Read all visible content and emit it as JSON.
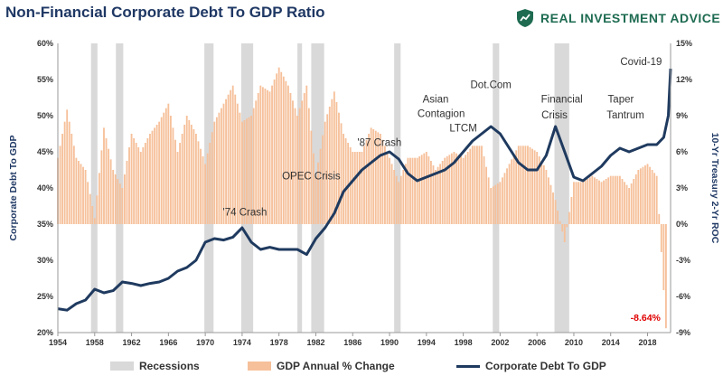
{
  "header": {
    "title": "Non-Financial Corporate Debt To GDP Ratio",
    "brand": "REAL INVESTMENT ADVICE"
  },
  "colors": {
    "debt_line": "#1f3a5f",
    "gdp_bars": "#f6c09a",
    "recession": "#d9d9d9",
    "negative_label": "#e00000",
    "title": "#1f3864",
    "brand": "#1e6b52"
  },
  "legend": {
    "recessions": "Recessions",
    "gdp": "GDP Annual % Change",
    "debt": "Corporate Debt To GDP"
  },
  "chart_data": {
    "type": "combo",
    "title": "Non-Financial Corporate Debt To GDP Ratio",
    "xlabel": "",
    "ylabel_left": "Corporate Debt To GDP",
    "ylabel_right": "10-Yr Treasury 2-Yr ROC",
    "x_range": [
      1954,
      2020.5
    ],
    "y_left_range": [
      20,
      60
    ],
    "y_right_range": [
      -9,
      15
    ],
    "x_ticks": [
      "1954",
      "1958",
      "1962",
      "1966",
      "1970",
      "1974",
      "1978",
      "1982",
      "1986",
      "1990",
      "1994",
      "1998",
      "2002",
      "2006",
      "2010",
      "2014",
      "2018"
    ],
    "y_left_ticks": [
      "20%",
      "25%",
      "30%",
      "35%",
      "40%",
      "45%",
      "50%",
      "55%",
      "60%"
    ],
    "y_right_ticks": [
      "-9%",
      "-6%",
      "-3%",
      "0%",
      "3%",
      "6%",
      "9%",
      "12%",
      "15%"
    ],
    "recessions": [
      [
        1957.6,
        1958.3
      ],
      [
        1960.3,
        1961.1
      ],
      [
        1969.9,
        1970.9
      ],
      [
        1973.9,
        1975.2
      ],
      [
        1980.0,
        1980.5
      ],
      [
        1981.5,
        1982.9
      ],
      [
        1990.5,
        1991.2
      ],
      [
        2001.2,
        2001.9
      ],
      [
        2007.9,
        2009.5
      ]
    ],
    "series": [
      {
        "name": "Corporate Debt To GDP",
        "kind": "line",
        "axis": "left",
        "x": [
          1954,
          1955,
          1956,
          1957,
          1958,
          1959,
          1960,
          1961,
          1962,
          1963,
          1964,
          1965,
          1966,
          1967,
          1968,
          1969,
          1970,
          1971,
          1972,
          1973,
          1974,
          1975,
          1976,
          1977,
          1978,
          1979,
          1980,
          1981,
          1982,
          1983,
          1984,
          1985,
          1986,
          1987,
          1988,
          1989,
          1990,
          1991,
          1992,
          1993,
          1994,
          1995,
          1996,
          1997,
          1998,
          1999,
          2000,
          2001,
          2002,
          2003,
          2004,
          2005,
          2006,
          2007,
          2008,
          2009,
          2010,
          2011,
          2012,
          2013,
          2014,
          2015,
          2016,
          2017,
          2018,
          2019,
          2019.75,
          2020.25,
          2020.5
        ],
        "y": [
          23.3,
          23.1,
          24.0,
          24.5,
          26.0,
          25.5,
          25.8,
          27.0,
          26.8,
          26.5,
          26.8,
          27.0,
          27.5,
          28.5,
          29.0,
          30.0,
          32.5,
          33.0,
          32.8,
          33.2,
          34.5,
          32.5,
          31.5,
          31.8,
          31.5,
          31.5,
          31.5,
          30.8,
          33.0,
          34.5,
          36.5,
          39.5,
          41.0,
          42.5,
          43.5,
          44.5,
          45.0,
          44.0,
          42.0,
          41.0,
          41.5,
          42.0,
          42.5,
          43.5,
          45.0,
          46.5,
          47.5,
          48.5,
          47.5,
          45.5,
          43.5,
          42.5,
          42.5,
          44.5,
          48.5,
          45.0,
          41.5,
          41.0,
          42.0,
          43.0,
          44.5,
          45.5,
          45.0,
          45.5,
          46.0,
          46.0,
          47.0,
          50.0,
          56.5
        ]
      },
      {
        "name": "GDP Annual % Change",
        "kind": "bar",
        "axis": "right",
        "x": [
          1954,
          1955,
          1956,
          1957,
          1958,
          1959,
          1960,
          1961,
          1962,
          1963,
          1964,
          1965,
          1966,
          1967,
          1968,
          1969,
          1970,
          1971,
          1972,
          1973,
          1974,
          1975,
          1976,
          1977,
          1978,
          1979,
          1980,
          1981,
          1982,
          1983,
          1984,
          1985,
          1986,
          1987,
          1988,
          1989,
          1990,
          1991,
          1992,
          1993,
          1994,
          1995,
          1996,
          1997,
          1998,
          1999,
          2000,
          2001,
          2002,
          2003,
          2004,
          2005,
          2006,
          2007,
          2008,
          2009,
          2010,
          2011,
          2012,
          2013,
          2014,
          2015,
          2016,
          2017,
          2018,
          2019,
          2020
        ],
        "y": [
          5.5,
          9.5,
          5.5,
          4.5,
          0.5,
          8.0,
          4.5,
          3.0,
          7.5,
          6.0,
          7.5,
          8.5,
          10.0,
          6.0,
          9.0,
          7.5,
          5.0,
          8.5,
          10.0,
          11.5,
          8.5,
          9.0,
          11.5,
          11.0,
          13.0,
          11.5,
          9.0,
          11.5,
          4.0,
          8.5,
          11.0,
          7.5,
          6.0,
          6.0,
          8.0,
          7.5,
          5.5,
          3.5,
          5.5,
          5.5,
          6.0,
          4.5,
          5.5,
          6.0,
          5.5,
          6.5,
          6.5,
          3.0,
          3.5,
          5.0,
          6.5,
          6.5,
          6.0,
          4.5,
          2.0,
          -1.5,
          3.5,
          3.5,
          4.0,
          3.5,
          4.0,
          4.0,
          3.0,
          4.5,
          5.0,
          4.0,
          -8.64
        ]
      }
    ],
    "annotations": [
      {
        "text": "'74 Crash",
        "x": 1974.3,
        "y": 36.2
      },
      {
        "text": "OPEC Crisis",
        "x": 1981.5,
        "y": 41.2
      },
      {
        "text": "'87 Crash",
        "x": 1988.9,
        "y": 45.8
      },
      {
        "text": "Asian",
        "x": 1995.0,
        "y": 51.8
      },
      {
        "text": "Contagion",
        "x": 1995.6,
        "y": 49.8
      },
      {
        "text": "LTCM",
        "x": 1998.0,
        "y": 47.8
      },
      {
        "text": "Dot.Com",
        "x": 2001.0,
        "y": 53.8
      },
      {
        "text": "Financial",
        "x": 2008.7,
        "y": 51.8
      },
      {
        "text": "Crisis",
        "x": 2007.9,
        "y": 49.6
      },
      {
        "text": "Taper",
        "x": 2015.1,
        "y": 51.8
      },
      {
        "text": "Tantrum",
        "x": 2015.6,
        "y": 49.6
      },
      {
        "text": "Covid-19",
        "x": 2017.3,
        "y": 57.0
      }
    ],
    "value_labels": [
      {
        "text": "-8.64%",
        "x": 2020,
        "value": -8.64,
        "axis": "right"
      }
    ],
    "grid": false,
    "legend_position": "bottom"
  }
}
